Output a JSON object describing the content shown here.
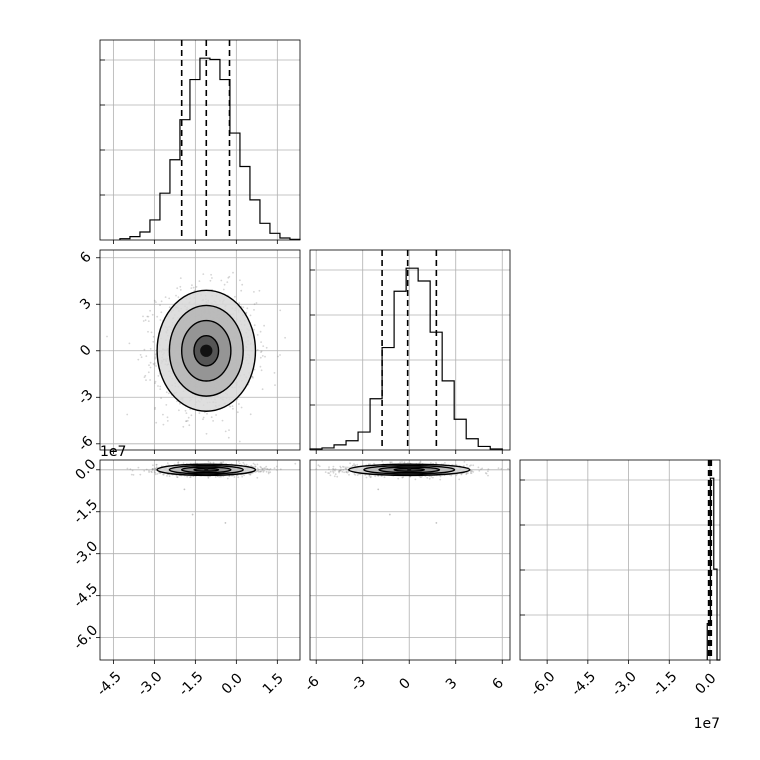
{
  "chart_data": {
    "type": "corner",
    "title": "",
    "histograms": [
      {
        "panel": "p0",
        "xlim": [
          -4.99,
          2.33
        ],
        "edges": [
          -4.26,
          -3.894,
          -3.528,
          -3.162,
          -2.796,
          -2.43,
          -2.064,
          -1.698,
          -1.332,
          -0.966,
          -0.6,
          -0.234,
          0.132,
          0.498,
          0.864,
          1.23,
          1.596,
          1.962,
          2.328
        ],
        "counts": [
          2,
          5,
          12,
          30,
          70,
          120,
          180,
          240,
          272,
          270,
          240,
          160,
          110,
          60,
          25,
          10,
          3,
          1
        ],
        "quantiles": [
          -2.0,
          -1.1,
          -0.25
        ],
        "xticks": [
          "-4.5",
          "-3.0",
          "-1.5",
          "0.0",
          "1.5"
        ]
      },
      {
        "panel": "p1",
        "xlim": [
          -6.4,
          6.5
        ],
        "edges": [
          -6.4,
          -5.625,
          -4.85,
          -4.075,
          -3.3,
          -2.525,
          -1.75,
          -0.975,
          -0.2,
          0.575,
          1.35,
          2.125,
          2.9,
          3.675,
          4.45,
          5.225,
          6.0
        ],
        "counts": [
          2,
          4,
          10,
          18,
          35,
          100,
          200,
          310,
          355,
          330,
          230,
          135,
          60,
          22,
          7,
          2
        ],
        "quantiles": [
          -1.75,
          -0.1,
          1.75
        ],
        "xticks": [
          "-6",
          "-3",
          "0",
          "3",
          "6"
        ]
      },
      {
        "panel": "p2",
        "xlim": [
          -7.0,
          0.37
        ],
        "edges": [
          -0.1,
          0.02,
          0.14,
          0.26,
          0.38
        ],
        "counts": [
          400,
          2000,
          1000,
          0
        ],
        "quantiles": [
          -0.05,
          0.0,
          0.05
        ],
        "xticks": [
          "-6.0",
          "-4.5",
          "-3.0",
          "-1.5",
          "0.0"
        ],
        "offset_label": "1e7"
      }
    ],
    "joint": [
      {
        "panel": "p10",
        "x_param": 0,
        "y_param": 1,
        "xlim": [
          -4.99,
          2.33
        ],
        "ylim": [
          -6.4,
          6.5
        ],
        "center": [
          -1.1,
          0.0
        ],
        "sigma": [
          0.9,
          1.95
        ],
        "yticks": [
          "-6",
          "-3",
          "0",
          "3",
          "6"
        ]
      },
      {
        "panel": "p20",
        "x_param": 0,
        "y_param": 2,
        "xlim": [
          -4.99,
          2.33
        ],
        "ylim": [
          -6.8,
          0.35
        ],
        "center": [
          -1.1,
          0.0
        ],
        "sigma": [
          0.9,
          0.1
        ],
        "yticks": [
          "-6.0",
          "-4.5",
          "-3.0",
          "-1.5",
          "0.0"
        ],
        "offset_label": "1e7"
      },
      {
        "panel": "p21",
        "x_param": 1,
        "y_param": 2,
        "xlim": [
          -6.4,
          6.5
        ],
        "ylim": [
          -6.8,
          0.35
        ],
        "center": [
          0.0,
          0.0
        ],
        "sigma": [
          1.95,
          0.1
        ]
      }
    ],
    "grid": true
  }
}
